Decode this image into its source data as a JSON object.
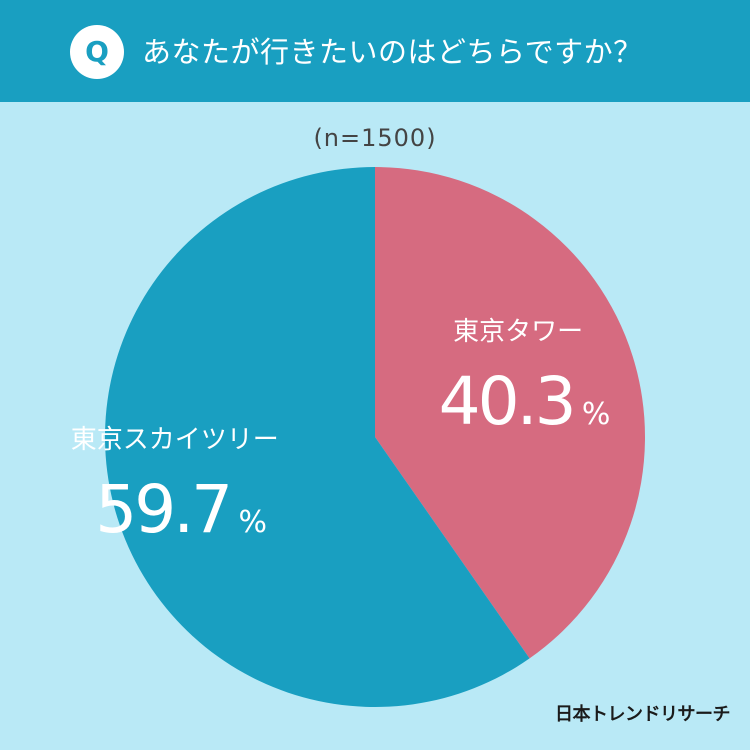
{
  "header": {
    "badge": "Q",
    "question": "あなたが行きたいのはどちらですか？"
  },
  "sample_size": "(n=1500)",
  "credit": "日本トレンドリサーチ",
  "colors": {
    "background": "#b9e9f6",
    "header": "#199fc1",
    "skytree": "#199fc1",
    "tower": "#d66b80",
    "label_text": "#ffffff"
  },
  "chart_data": {
    "type": "pie",
    "slices": [
      {
        "label": "東京タワー",
        "value": 40.3,
        "value_text": "40.3",
        "unit": "%",
        "color": "#d66b80"
      },
      {
        "label": "東京スカイツリー",
        "value": 59.7,
        "value_text": "59.7",
        "unit": "%",
        "color": "#199fc1"
      }
    ],
    "start": "12 o'clock",
    "direction": "clockwise",
    "legend": "none"
  }
}
